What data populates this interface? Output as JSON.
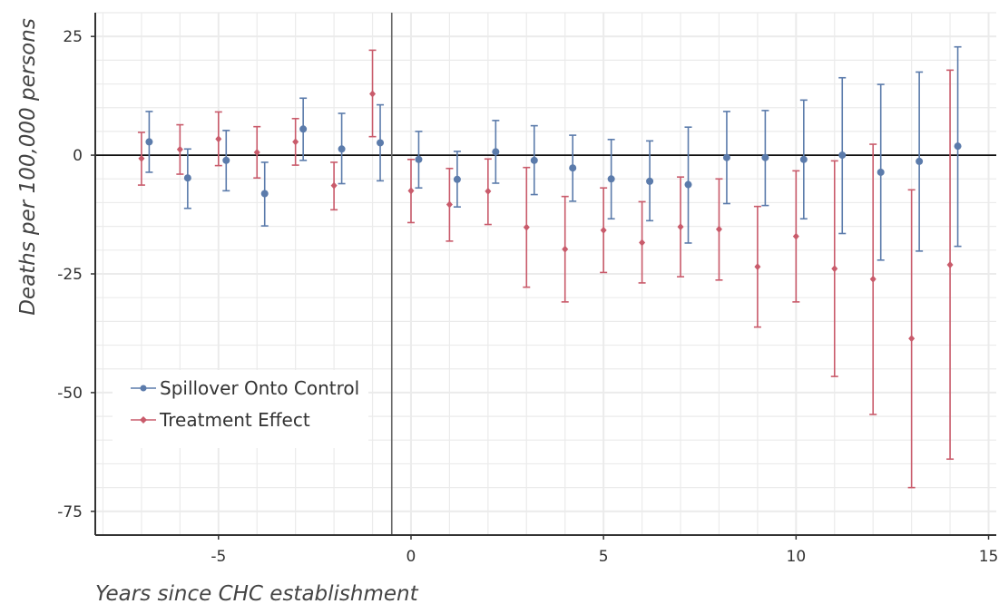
{
  "chart_data": {
    "type": "scatter",
    "subtype": "errorbar",
    "title": "",
    "xlabel": "Years since CHC establishment",
    "ylabel": "Deaths per 100,000 persons",
    "xlim": [
      -8.2,
      15.2
    ],
    "ylim": [
      -80,
      30
    ],
    "x_ticks": [
      -5,
      0,
      5,
      10,
      15
    ],
    "y_ticks": [
      25,
      0,
      -25,
      -50,
      -75
    ],
    "x_tick_labels": [
      "-5",
      "0",
      "5",
      "10",
      "15"
    ],
    "y_tick_labels": [
      "25",
      "0",
      "-25",
      "-50",
      "-75"
    ],
    "grid": true,
    "reference_lines": {
      "horizontal_y": 0,
      "vertical_x": -0.5
    },
    "legend_position": "bottom-left",
    "series": [
      {
        "name": "Spillover Onto Control",
        "color": "#5b7bab",
        "marker": "circle",
        "points": [
          {
            "x": -6.8,
            "y": 2.8,
            "lo": -3.6,
            "hi": 9.2
          },
          {
            "x": -5.8,
            "y": -4.8,
            "lo": -11.2,
            "hi": 1.3
          },
          {
            "x": -4.8,
            "y": -1.1,
            "lo": -7.5,
            "hi": 5.2
          },
          {
            "x": -3.8,
            "y": -8.1,
            "lo": -14.9,
            "hi": -1.5
          },
          {
            "x": -2.8,
            "y": 5.5,
            "lo": -1.1,
            "hi": 12.0
          },
          {
            "x": -1.8,
            "y": 1.3,
            "lo": -6.0,
            "hi": 8.8
          },
          {
            "x": -0.8,
            "y": 2.6,
            "lo": -5.4,
            "hi": 10.6
          },
          {
            "x": 0.2,
            "y": -0.9,
            "lo": -6.9,
            "hi": 5.0
          },
          {
            "x": 1.2,
            "y": -5.1,
            "lo": -10.9,
            "hi": 0.8
          },
          {
            "x": 2.2,
            "y": 0.7,
            "lo": -5.9,
            "hi": 7.3
          },
          {
            "x": 3.2,
            "y": -1.1,
            "lo": -8.3,
            "hi": 6.2
          },
          {
            "x": 4.2,
            "y": -2.7,
            "lo": -9.7,
            "hi": 4.2
          },
          {
            "x": 5.2,
            "y": -5.0,
            "lo": -13.4,
            "hi": 3.3
          },
          {
            "x": 6.2,
            "y": -5.5,
            "lo": -13.8,
            "hi": 3.0
          },
          {
            "x": 7.2,
            "y": -6.2,
            "lo": -18.5,
            "hi": 5.9
          },
          {
            "x": 8.2,
            "y": -0.5,
            "lo": -10.2,
            "hi": 9.2
          },
          {
            "x": 9.2,
            "y": -0.5,
            "lo": -10.6,
            "hi": 9.4
          },
          {
            "x": 10.2,
            "y": -0.9,
            "lo": -13.4,
            "hi": 11.6
          },
          {
            "x": 11.2,
            "y": 0.0,
            "lo": -16.5,
            "hi": 16.3
          },
          {
            "x": 12.2,
            "y": -3.6,
            "lo": -22.1,
            "hi": 14.9
          },
          {
            "x": 13.2,
            "y": -1.3,
            "lo": -20.2,
            "hi": 17.5
          },
          {
            "x": 14.2,
            "y": 1.9,
            "lo": -19.2,
            "hi": 22.8
          }
        ]
      },
      {
        "name": "Treatment Effect",
        "color": "#c95b6b",
        "marker": "diamond",
        "points": [
          {
            "x": -7.0,
            "y": -0.7,
            "lo": -6.3,
            "hi": 4.8
          },
          {
            "x": -6.0,
            "y": 1.2,
            "lo": -4.0,
            "hi": 6.4
          },
          {
            "x": -5.0,
            "y": 3.4,
            "lo": -2.2,
            "hi": 9.1
          },
          {
            "x": -4.0,
            "y": 0.6,
            "lo": -4.8,
            "hi": 6.0
          },
          {
            "x": -3.0,
            "y": 2.8,
            "lo": -2.1,
            "hi": 7.7
          },
          {
            "x": -2.0,
            "y": -6.4,
            "lo": -11.5,
            "hi": -1.5
          },
          {
            "x": -1.0,
            "y": 12.9,
            "lo": 3.9,
            "hi": 22.1
          },
          {
            "x": 0.0,
            "y": -7.5,
            "lo": -14.2,
            "hi": -0.9
          },
          {
            "x": 1.0,
            "y": -10.4,
            "lo": -18.1,
            "hi": -2.8
          },
          {
            "x": 2.0,
            "y": -7.6,
            "lo": -14.6,
            "hi": -0.8
          },
          {
            "x": 3.0,
            "y": -15.2,
            "lo": -27.8,
            "hi": -2.6
          },
          {
            "x": 4.0,
            "y": -19.8,
            "lo": -30.9,
            "hi": -8.7
          },
          {
            "x": 5.0,
            "y": -15.8,
            "lo": -24.7,
            "hi": -6.9
          },
          {
            "x": 6.0,
            "y": -18.4,
            "lo": -26.9,
            "hi": -9.8
          },
          {
            "x": 7.0,
            "y": -15.1,
            "lo": -25.6,
            "hi": -4.6
          },
          {
            "x": 8.0,
            "y": -15.6,
            "lo": -26.3,
            "hi": -5.0
          },
          {
            "x": 9.0,
            "y": -23.5,
            "lo": -36.2,
            "hi": -10.8
          },
          {
            "x": 10.0,
            "y": -17.1,
            "lo": -30.9,
            "hi": -3.3
          },
          {
            "x": 11.0,
            "y": -23.9,
            "lo": -46.6,
            "hi": -1.2
          },
          {
            "x": 12.0,
            "y": -26.1,
            "lo": -54.6,
            "hi": 2.3
          },
          {
            "x": 13.0,
            "y": -38.6,
            "lo": -70.0,
            "hi": -7.3
          },
          {
            "x": 14.0,
            "y": -23.1,
            "lo": -64.0,
            "hi": 17.9
          }
        ]
      }
    ]
  }
}
